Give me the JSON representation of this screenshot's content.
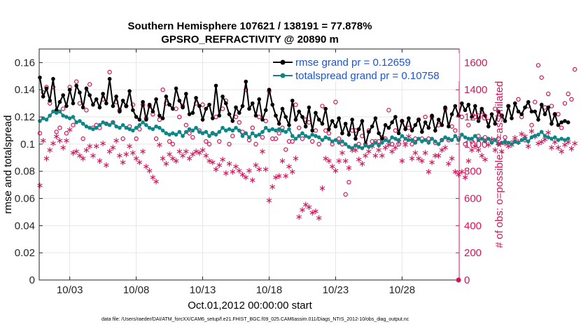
{
  "chart_data": {
    "type": "line",
    "title": "Southern Hemisphere 107621 / 138191 = 77.878%",
    "subtitle": "GPSRO_REFRACTIVITY @ 20890 m",
    "xlabel": "Oct.01,2012 00:00:00 start",
    "ylabel_left": "rmse and totalspread",
    "ylabel_right": "# of obs: o=possible; ∗=assimilated",
    "footnote": "data file: /Users/raeder/DAI/ATM_forcXX/CAM6_setup/f.e21.FHIST_BGC.f09_025.CAM6assim.011/Diags_NTrS_2012-10/obs_diag_output.nc",
    "xlim": [
      0.7,
      32.3
    ],
    "x_ticks": [
      3,
      8,
      13,
      18,
      23,
      28
    ],
    "x_tick_labels": [
      "10/03",
      "10/08",
      "10/13",
      "10/18",
      "10/23",
      "10/28"
    ],
    "ylim_left": [
      0,
      0.17
    ],
    "y_ticks_left": [
      "0",
      "0.02",
      "0.04",
      "0.06",
      "0.08",
      "0.1",
      "0.12",
      "0.14",
      "0.16"
    ],
    "ylim_right": [
      0,
      1700
    ],
    "y_ticks_right": [
      "0",
      "200",
      "400",
      "600",
      "800",
      "1000",
      "1200",
      "1400",
      "1600"
    ],
    "grid": true,
    "legend_position": "top-right",
    "legend": [
      "rmse grand pr = 0.12659",
      "totalspread grand pr = 0.10758"
    ],
    "x_start": 0.75,
    "x_step": 0.25,
    "series": [
      {
        "name": "rmse grand pr = 0.12659",
        "axis": "left",
        "color": "#000000",
        "values": [
          0.149,
          0.135,
          0.141,
          0.132,
          0.148,
          0.125,
          0.131,
          0.136,
          0.128,
          0.14,
          0.13,
          0.143,
          0.138,
          0.127,
          0.141,
          0.136,
          0.129,
          0.133,
          0.127,
          0.137,
          0.13,
          0.148,
          0.128,
          0.135,
          0.124,
          0.132,
          0.128,
          0.139,
          0.125,
          0.12,
          0.118,
          0.131,
          0.118,
          0.129,
          0.124,
          0.133,
          0.121,
          0.119,
          0.135,
          0.129,
          0.126,
          0.141,
          0.132,
          0.127,
          0.137,
          0.122,
          0.123,
          0.134,
          0.128,
          0.118,
          0.126,
          0.129,
          0.119,
          0.143,
          0.121,
          0.135,
          0.13,
          0.122,
          0.117,
          0.127,
          0.123,
          0.128,
          0.146,
          0.126,
          0.13,
          0.121,
          0.133,
          0.118,
          0.125,
          0.14,
          0.129,
          0.121,
          0.115,
          0.126,
          0.12,
          0.114,
          0.132,
          0.118,
          0.124,
          0.12,
          0.113,
          0.127,
          0.11,
          0.123,
          0.118,
          0.115,
          0.126,
          0.111,
          0.117,
          0.113,
          0.119,
          0.108,
          0.115,
          0.107,
          0.118,
          0.104,
          0.111,
          0.117,
          0.099,
          0.109,
          0.113,
          0.119,
          0.108,
          0.104,
          0.114,
          0.112,
          0.116,
          0.12,
          0.108,
          0.117,
          0.111,
          0.119,
          0.11,
          0.114,
          0.118,
          0.109,
          0.116,
          0.112,
          0.121,
          0.11,
          0.118,
          0.114,
          0.127,
          0.113,
          0.122,
          0.128,
          0.121,
          0.13,
          0.125,
          0.129,
          0.12,
          0.128,
          0.117,
          0.126,
          0.121,
          0.113,
          0.122,
          0.115,
          0.124,
          0.121,
          0.117,
          0.128,
          0.119,
          0.13,
          0.124,
          0.122,
          0.127,
          0.131,
          0.124,
          0.124,
          0.118,
          0.129,
          0.122,
          0.127,
          0.115,
          0.122,
          0.114,
          0.116,
          0.117,
          0.116
        ]
      },
      {
        "name": "totalspread grand pr = 0.10758",
        "axis": "left",
        "color": "#0f8585",
        "values": [
          0.117,
          0.119,
          0.118,
          0.121,
          0.124,
          0.123,
          0.124,
          0.121,
          0.12,
          0.119,
          0.12,
          0.116,
          0.117,
          0.115,
          0.113,
          0.112,
          0.111,
          0.112,
          0.114,
          0.116,
          0.115,
          0.114,
          0.116,
          0.113,
          0.112,
          0.114,
          0.112,
          0.111,
          0.11,
          0.112,
          0.114,
          0.116,
          0.114,
          0.112,
          0.111,
          0.113,
          0.112,
          0.11,
          0.108,
          0.107,
          0.108,
          0.107,
          0.109,
          0.106,
          0.109,
          0.111,
          0.11,
          0.112,
          0.109,
          0.108,
          0.109,
          0.106,
          0.108,
          0.107,
          0.109,
          0.112,
          0.11,
          0.111,
          0.11,
          0.112,
          0.11,
          0.106,
          0.108,
          0.105,
          0.108,
          0.106,
          0.107,
          0.109,
          0.112,
          0.11,
          0.111,
          0.11,
          0.111,
          0.11,
          0.109,
          0.111,
          0.106,
          0.104,
          0.106,
          0.108,
          0.106,
          0.105,
          0.107,
          0.106,
          0.105,
          0.103,
          0.105,
          0.104,
          0.102,
          0.103,
          0.101,
          0.102,
          0.1,
          0.098,
          0.097,
          0.099,
          0.098,
          0.097,
          0.099,
          0.098,
          0.099,
          0.101,
          0.099,
          0.101,
          0.103,
          0.102,
          0.105,
          0.104,
          0.103,
          0.106,
          0.104,
          0.103,
          0.103,
          0.101,
          0.104,
          0.102,
          0.103,
          0.101,
          0.104,
          0.102,
          0.1,
          0.103,
          0.105,
          0.104,
          0.103,
          0.106,
          0.103,
          0.107,
          0.105,
          0.104,
          0.104,
          0.106,
          0.103,
          0.104,
          0.102,
          0.104,
          0.101,
          0.103,
          0.1,
          0.101,
          0.102,
          0.101,
          0.1,
          0.102,
          0.101,
          0.103,
          0.104,
          0.102,
          0.105,
          0.106,
          0.107,
          0.109,
          0.106,
          0.105,
          0.104,
          0.105,
          0.103,
          0.104,
          0.103,
          0.104
        ]
      },
      {
        "name": "possible",
        "axis": "right",
        "marker": "circle",
        "color": "#d4145a",
        "values": [
          1080,
          1380,
          1420,
          1300,
          1420,
          1090,
          1120,
          1260,
          1080,
          1420,
          1140,
          1460,
          1300,
          1040,
          1250,
          1440,
          1120,
          1140,
          1120,
          1330,
          1150,
          1530,
          1160,
          1310,
          1250,
          1040,
          1280,
          1130,
          1290,
          1040,
          1110,
          1290,
          1190,
          1280,
          1220,
          1040,
          1180,
          1400,
          1300,
          1020,
          1000,
          1260,
          1200,
          1280,
          1140,
          1080,
          1050,
          1300,
          1100,
          1290,
          1020,
          1000,
          1080,
          1200,
          1020,
          1260,
          1320,
          1000,
          1060,
          1200,
          1160,
          1090,
          1400,
          1030,
          1120,
          1000,
          1200,
          1050,
          1170,
          1390,
          1040,
          1040,
          1080,
          1120,
          960,
          1020,
          1020,
          1290,
          1120,
          1040,
          1180,
          1160,
          1020,
          1100,
          1000,
          1280,
          1100,
          1080,
          1000,
          1310,
          1040,
          1000,
          630,
          720,
          1100,
          1100,
          1000,
          1060,
          1000,
          1100,
          1020,
          1020,
          1020,
          1050,
          1040,
          1250,
          1000,
          1100,
          1000,
          1170,
          1020,
          1120,
          1000,
          1040,
          1180,
          1040,
          1200,
          1040,
          1200,
          1010,
          1140,
          1030,
          1260,
          1030,
          1130,
          1100,
          1040,
          1200,
          1000,
          1140,
          1020,
          1200,
          1060,
          1240,
          1050,
          1170,
          1020,
          1260,
          1040,
          1210,
          1050,
          1280,
          1010,
          1020,
          1330,
          1200,
          1030,
          1280,
          1140,
          1310,
          1580,
          1490,
          1270,
          1370,
          1280,
          1220,
          1220,
          1120,
          1300,
          1370,
          1330,
          1550
        ]
      },
      {
        "name": "assimilated",
        "axis": "right",
        "marker": "asterisk",
        "color": "#d4145a",
        "values": [
          700,
          1030,
          900,
          960,
          1010,
          1060,
          1030,
          980,
          1030,
          1110,
          940,
          950,
          920,
          900,
          960,
          990,
          920,
          990,
          880,
          1010,
          850,
          950,
          980,
          1030,
          920,
          870,
          930,
          990,
          940,
          900,
          870,
          950,
          840,
          810,
          760,
          730,
          1000,
          900,
          860,
          930,
          900,
          880,
          950,
          920,
          950,
          900,
          930,
          950,
          940,
          960,
          920,
          880,
          870,
          820,
          850,
          890,
          790,
          860,
          800,
          840,
          810,
          780,
          760,
          810,
          740,
          850,
          820,
          950,
          820,
          590,
          690,
          760,
          770,
          880,
          770,
          840,
          800,
          900,
          470,
          520,
          560,
          540,
          500,
          510,
          460,
          680,
          900,
          880,
          840,
          810,
          880,
          940,
          880,
          830,
          960,
          960,
          890,
          860,
          920,
          950,
          990,
          920,
          960,
          920,
          980,
          1000,
          950,
          980,
          1020,
          880,
          1000,
          1060,
          900,
          940,
          900,
          880,
          940,
          800,
          870,
          920,
          920,
          960,
          980,
          860,
          900,
          800,
          780,
          800,
          760,
          880,
          960,
          990,
          960,
          920,
          890,
          1000,
          1040,
          960,
          1010,
          950,
          1010,
          990,
          1000,
          1050,
          1020,
          1080,
          1060,
          990,
          1100,
          1060,
          1010,
          1020,
          1040,
          1090,
          980,
          1020,
          980,
          950,
          1000,
          1020,
          970,
          1010
        ]
      }
    ],
    "right_axis_endpoint": {
      "x": 32.25,
      "value": 0
    }
  }
}
